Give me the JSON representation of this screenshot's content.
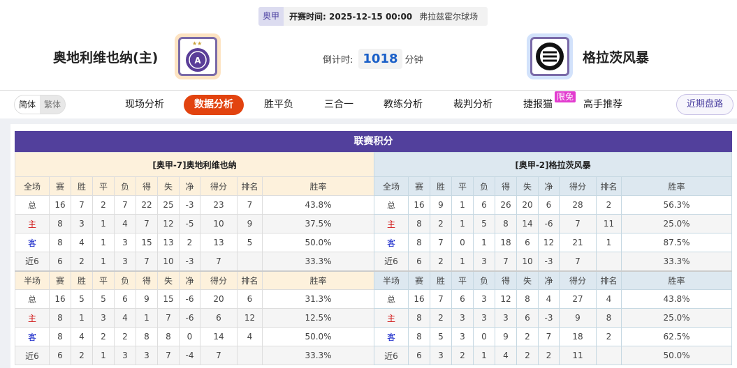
{
  "match": {
    "league": "奥甲",
    "time_label": "开赛时间:",
    "time": "2025-12-15 00:00",
    "venue": "弗拉兹霍尔球场"
  },
  "home": {
    "name": "奥地利维也纳(主)",
    "logo": "austria-wien-crest"
  },
  "away": {
    "name": "格拉茨风暴",
    "logo": "sturm-graz-crest"
  },
  "countdown": {
    "label": "倒计时:",
    "value": "1018",
    "unit": "分钟"
  },
  "lang": {
    "simplified": "简体",
    "traditional": "繁体"
  },
  "nav": {
    "tabs": [
      "现场分析",
      "数据分析",
      "胜平负",
      "三合一",
      "教练分析",
      "裁判分析",
      "捷报猫",
      "高手推荐"
    ],
    "active": "数据分析",
    "badge": "限免",
    "recent": "近期盘路"
  },
  "colors": {
    "accent": "#e2430f",
    "title_bar": "#52409c",
    "home_header": "#fdf1dc",
    "away_header": "#dde8f0"
  },
  "standings": {
    "title": "联赛积分",
    "columns_full": [
      "全场",
      "赛",
      "胜",
      "平",
      "负",
      "得",
      "失",
      "净",
      "得分",
      "排名",
      "胜率"
    ],
    "columns_half": [
      "半场",
      "赛",
      "胜",
      "平",
      "负",
      "得",
      "失",
      "净",
      "得分",
      "排名",
      "胜率"
    ],
    "home": {
      "header": "[奥甲-7]奥地利维也纳",
      "full": [
        [
          "总",
          "16",
          "7",
          "2",
          "7",
          "22",
          "25",
          "-3",
          "23",
          "7",
          "43.8%"
        ],
        [
          "主",
          "8",
          "3",
          "1",
          "4",
          "7",
          "12",
          "-5",
          "10",
          "9",
          "37.5%"
        ],
        [
          "客",
          "8",
          "4",
          "1",
          "3",
          "15",
          "13",
          "2",
          "13",
          "5",
          "50.0%"
        ],
        [
          "近6",
          "6",
          "2",
          "1",
          "3",
          "7",
          "10",
          "-3",
          "7",
          "",
          "33.3%"
        ]
      ],
      "half": [
        [
          "总",
          "16",
          "5",
          "5",
          "6",
          "9",
          "15",
          "-6",
          "20",
          "6",
          "31.3%"
        ],
        [
          "主",
          "8",
          "1",
          "3",
          "4",
          "1",
          "7",
          "-6",
          "6",
          "12",
          "12.5%"
        ],
        [
          "客",
          "8",
          "4",
          "2",
          "2",
          "8",
          "8",
          "0",
          "14",
          "4",
          "50.0%"
        ],
        [
          "近6",
          "6",
          "2",
          "1",
          "3",
          "3",
          "7",
          "-4",
          "7",
          "",
          "33.3%"
        ]
      ]
    },
    "away": {
      "header": "[奥甲-2]格拉茨风暴",
      "full": [
        [
          "总",
          "16",
          "9",
          "1",
          "6",
          "26",
          "20",
          "6",
          "28",
          "2",
          "56.3%"
        ],
        [
          "主",
          "8",
          "2",
          "1",
          "5",
          "8",
          "14",
          "-6",
          "7",
          "11",
          "25.0%"
        ],
        [
          "客",
          "8",
          "7",
          "0",
          "1",
          "18",
          "6",
          "12",
          "21",
          "1",
          "87.5%"
        ],
        [
          "近6",
          "6",
          "2",
          "1",
          "3",
          "7",
          "10",
          "-3",
          "7",
          "",
          "33.3%"
        ]
      ],
      "half": [
        [
          "总",
          "16",
          "7",
          "6",
          "3",
          "12",
          "8",
          "4",
          "27",
          "4",
          "43.8%"
        ],
        [
          "主",
          "8",
          "2",
          "3",
          "3",
          "3",
          "6",
          "-3",
          "9",
          "8",
          "25.0%"
        ],
        [
          "客",
          "8",
          "5",
          "3",
          "0",
          "9",
          "2",
          "7",
          "18",
          "2",
          "62.5%"
        ],
        [
          "近6",
          "6",
          "3",
          "2",
          "1",
          "4",
          "2",
          "2",
          "11",
          "",
          "50.0%"
        ]
      ]
    }
  }
}
